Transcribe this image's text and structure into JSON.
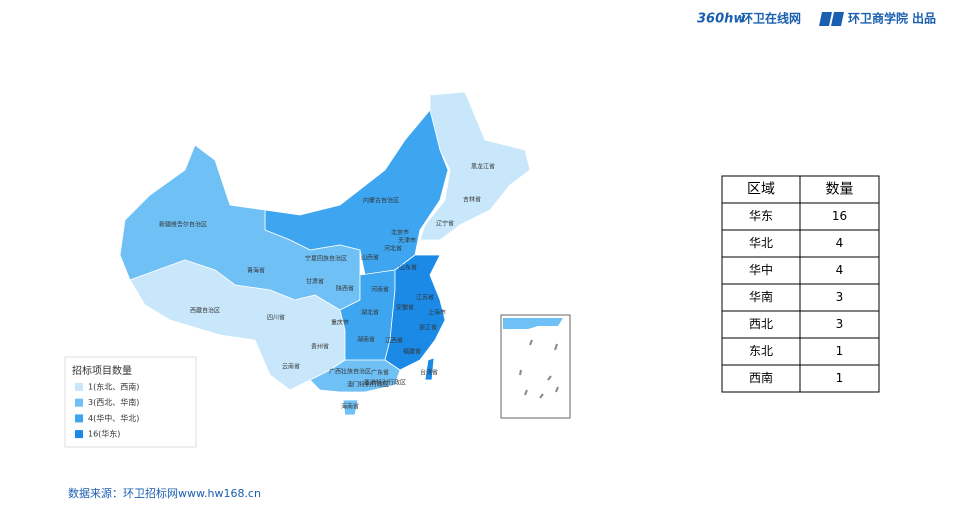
{
  "header": {
    "logo": "360hw",
    "site": "环卫在线网",
    "academy": "环卫商学院",
    "credit": "出品"
  },
  "map": {
    "labels": [
      "黑龙江省",
      "吉林省",
      "辽宁省",
      "内蒙古自治区",
      "新疆维吾尔自治区",
      "北京市",
      "天津市",
      "河北省",
      "山西省",
      "宁夏回族自治区",
      "青海省",
      "甘肃省",
      "山东省",
      "陕西省",
      "河南省",
      "江苏省",
      "安徽省",
      "上海市",
      "西藏自治区",
      "四川省",
      "重庆市",
      "湖北省",
      "浙江省",
      "湖南省",
      "江西省",
      "贵州省",
      "福建省",
      "云南省",
      "广西壮族自治区",
      "广东省",
      "台湾省",
      "香港特别行政区",
      "澳门特别行政区",
      "海南省"
    ]
  },
  "legend": {
    "title": "招标项目数量",
    "items": [
      {
        "label": "1(东北、西南)",
        "color": "#c8e7fb"
      },
      {
        "label": "3(西北、华南)",
        "color": "#6fc0f5"
      },
      {
        "label": "4(华中、华北)",
        "color": "#3ea6f0"
      },
      {
        "label": "16(华东)",
        "color": "#1a8ae6"
      }
    ]
  },
  "table": {
    "header": [
      "区域",
      "数量"
    ],
    "rows": [
      [
        "华东",
        "16"
      ],
      [
        "华北",
        "4"
      ],
      [
        "华中",
        "4"
      ],
      [
        "华南",
        "3"
      ],
      [
        "西北",
        "3"
      ],
      [
        "东北",
        "1"
      ],
      [
        "西南",
        "1"
      ]
    ]
  },
  "footer": {
    "source": "数据来源：环卫招标网www.hw168.cn"
  }
}
